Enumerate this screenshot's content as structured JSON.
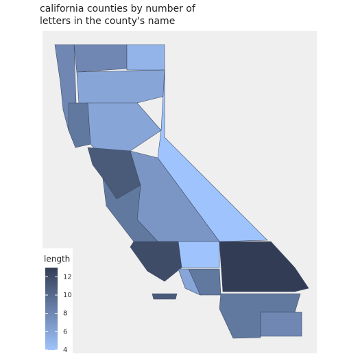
{
  "chart_data": {
    "type": "choropleth",
    "title": [
      "california counties by number of",
      "letters in the county's name"
    ],
    "legend_title": "length",
    "values": [
      8,
      8,
      5,
      6,
      9,
      6,
      11,
      4,
      7,
      9,
      12,
      4,
      13,
      9,
      6,
      9,
      8,
      11
    ],
    "clim": [
      4,
      13
    ],
    "ticks": [
      4,
      6,
      8,
      10,
      12
    ],
    "low_color": "#9fc3fc",
    "high_color": "#323d55",
    "border_color": "#3d4a66"
  }
}
